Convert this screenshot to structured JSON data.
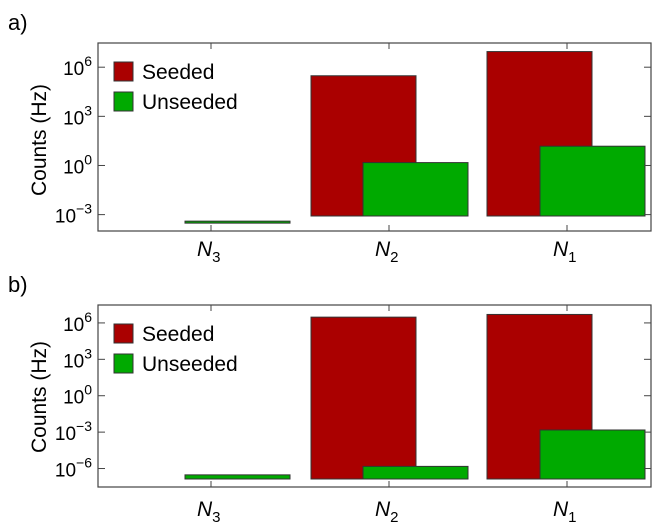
{
  "chart_data": [
    {
      "panel_label": "a)",
      "type": "bar",
      "scale": "log",
      "ylabel": "Counts (Hz)",
      "categories": [
        "N3",
        "N2",
        "N1"
      ],
      "category_labels": [
        {
          "main": "N",
          "sub": "3"
        },
        {
          "main": "N",
          "sub": "2"
        },
        {
          "main": "N",
          "sub": "1"
        }
      ],
      "ylim": [
        0.0001,
        30000000
      ],
      "yticks": [
        {
          "value": 0.001,
          "base": "10",
          "exp": "−3"
        },
        {
          "value": 1,
          "base": "10",
          "exp": "0"
        },
        {
          "value": 1000,
          "base": "10",
          "exp": "3"
        },
        {
          "value": 1000000,
          "base": "10",
          "exp": "6"
        }
      ],
      "series": [
        {
          "name": "Seeded",
          "color": "#aa0000",
          "values": [
            null,
            300000,
            9000000
          ]
        },
        {
          "name": "Unseeded",
          "color": "#00aa00",
          "values": [
            0.0004,
            1.5,
            15
          ]
        }
      ],
      "legend": "top-left",
      "grid": false
    },
    {
      "panel_label": "b)",
      "type": "bar",
      "scale": "log",
      "ylabel": "Counts (Hz)",
      "categories": [
        "N3",
        "N2",
        "N1"
      ],
      "category_labels": [
        {
          "main": "N",
          "sub": "3"
        },
        {
          "main": "N",
          "sub": "2"
        },
        {
          "main": "N",
          "sub": "1"
        }
      ],
      "ylim": [
        3e-08,
        30000000
      ],
      "yticks": [
        {
          "value": 1e-06,
          "base": "10",
          "exp": "−6"
        },
        {
          "value": 0.001,
          "base": "10",
          "exp": "−3"
        },
        {
          "value": 1,
          "base": "10",
          "exp": "0"
        },
        {
          "value": 1000,
          "base": "10",
          "exp": "3"
        },
        {
          "value": 1000000,
          "base": "10",
          "exp": "6"
        }
      ],
      "series": [
        {
          "name": "Seeded",
          "color": "#aa0000",
          "values": [
            null,
            3000000,
            5000000
          ]
        },
        {
          "name": "Unseeded",
          "color": "#00aa00",
          "values": [
            3e-07,
            1.5e-06,
            0.0015
          ]
        }
      ],
      "legend": "top-left",
      "grid": false
    }
  ]
}
